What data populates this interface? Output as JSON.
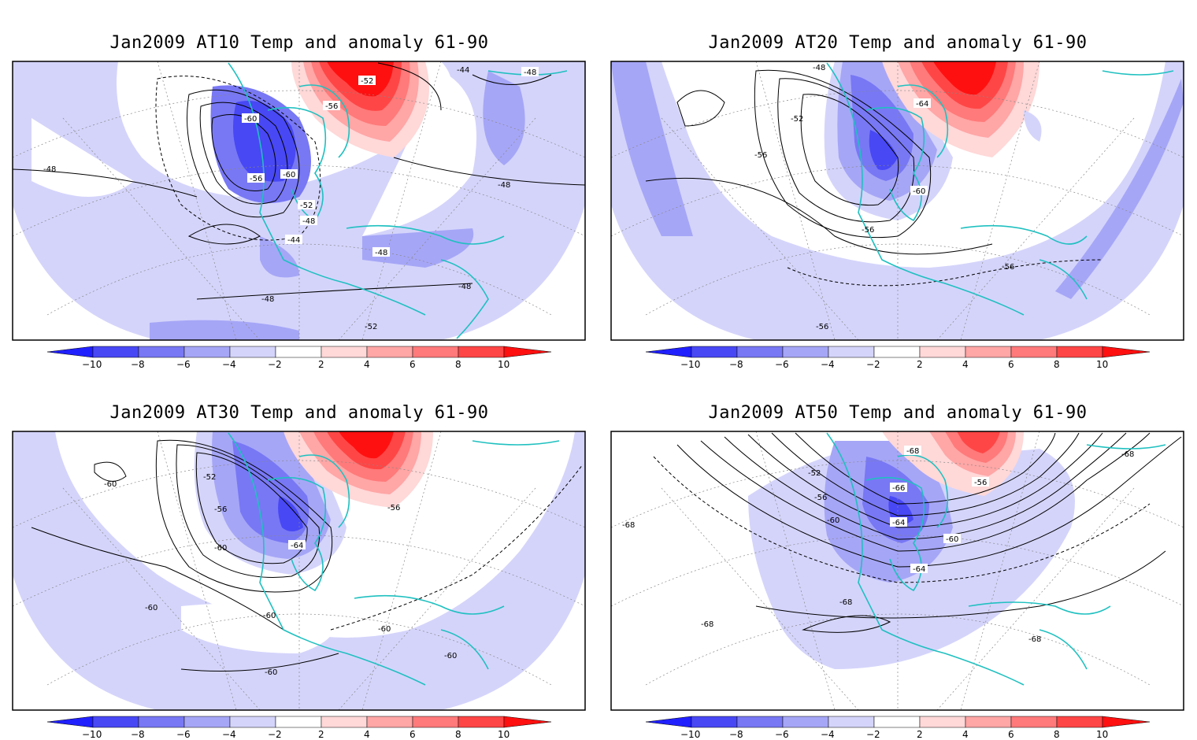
{
  "colors": {
    "anomaly": {
      "n10": "#2020ff",
      "n8": "#4848f5",
      "n6": "#7878f5",
      "n4": "#a6a6f7",
      "n2": "#d4d4fb",
      "p2": "#ffd8d8",
      "p4": "#ffa6a6",
      "p6": "#ff7a7a",
      "p8": "#ff4646",
      "p10": "#ff1010"
    },
    "coastline": "#20c0c0",
    "contour": "#000000",
    "graticule": "#888888"
  },
  "colorbar": {
    "ticks": [
      "−10",
      "−8",
      "−6",
      "−4",
      "−2",
      "2",
      "4",
      "6",
      "8",
      "10"
    ]
  },
  "panels": [
    {
      "id": "at10",
      "title": "Jan2009 AT10 Temp and anomaly 61-90",
      "contour_labels": [
        "-52",
        "-44",
        "-48",
        "-56",
        "-60",
        "-48",
        "-56",
        "-60",
        "-52",
        "-48",
        "-44",
        "-48",
        "-48",
        "-48",
        "-48",
        "-52"
      ]
    },
    {
      "id": "at20",
      "title": "Jan2009 AT20 Temp and anomaly 61-90",
      "contour_labels": [
        "-48",
        "-52",
        "-64",
        "-56",
        "-60",
        "-56",
        "-56",
        "-56"
      ]
    },
    {
      "id": "at30",
      "title": "Jan2009 AT30 Temp and anomaly 61-90",
      "contour_labels": [
        "-52",
        "-60",
        "-56",
        "-56",
        "-60",
        "-64",
        "-60",
        "-60",
        "-60",
        "-60",
        "-60"
      ]
    },
    {
      "id": "at50",
      "title": "Jan2009 AT50 Temp and anomaly 61-90",
      "contour_labels": [
        "-68",
        "-52",
        "-56",
        "-56",
        "-66",
        "-60",
        "-64",
        "-60",
        "-64",
        "-68",
        "-68",
        "-68",
        "-68",
        "-68"
      ]
    }
  ]
}
